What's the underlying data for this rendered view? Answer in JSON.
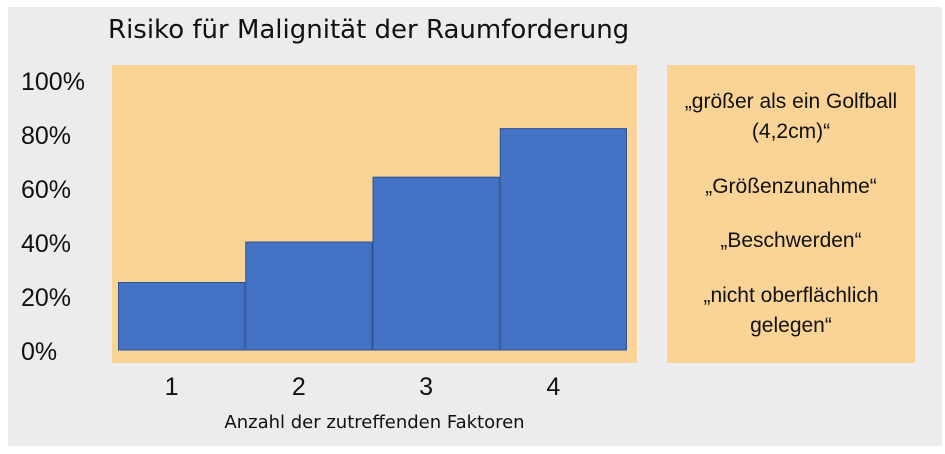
{
  "chart_data": {
    "type": "bar",
    "title": "Risiko für Malignität der Raumforderung",
    "xlabel": "Anzahl der zutreffenden Faktoren",
    "ylabel": "",
    "categories": [
      "1",
      "2",
      "3",
      "4"
    ],
    "values": [
      25,
      40,
      64,
      82
    ],
    "ylim": [
      0,
      100
    ],
    "yticks": [
      "0%",
      "20%",
      "40%",
      "60%",
      "80%",
      "100%"
    ],
    "ytick_values": [
      0,
      20,
      40,
      60,
      80,
      100
    ],
    "grid": false,
    "legend": "none",
    "colors": {
      "bar": "#4472c4",
      "bar_edge": "#2f528f",
      "plot_bg": "#fad497",
      "frame_bg": "#ececec"
    }
  },
  "factors": [
    "„größer als ein Golfball (4,2cm)“",
    "„Größenzunahme“",
    "„Beschwerden“",
    "„nicht oberflächlich gelegen“"
  ]
}
